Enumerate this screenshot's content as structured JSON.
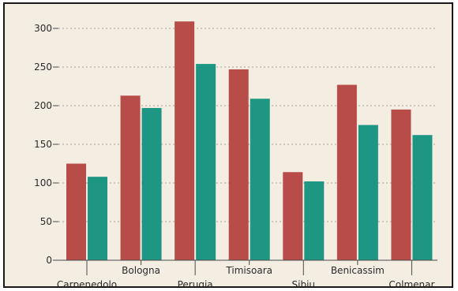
{
  "chart_data": {
    "type": "bar",
    "categories": [
      "Carpenedolo",
      "Bologna",
      "Perugia",
      "Timisoara",
      "Sibiu",
      "Benicassim",
      "Colmenar"
    ],
    "series": [
      {
        "values": [
          125,
          213,
          309,
          247,
          114,
          227,
          195
        ]
      },
      {
        "values": [
          108,
          197,
          254,
          209,
          102,
          175,
          162
        ]
      }
    ],
    "ylim": [
      0,
      300
    ],
    "yticks": [
      0,
      50,
      100,
      150,
      200,
      250,
      300
    ],
    "grid": true,
    "legend": "none",
    "colors": [
      "#b84c48",
      "#1e9684"
    ]
  }
}
